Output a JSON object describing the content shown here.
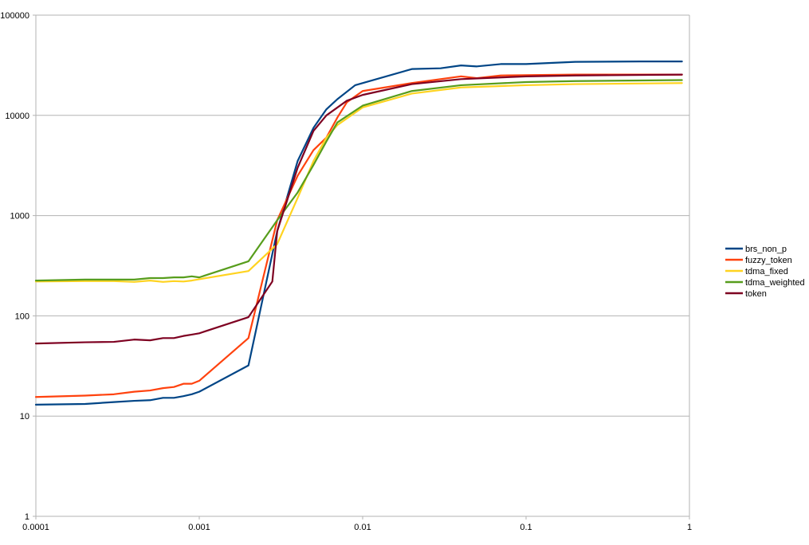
{
  "chart_data": {
    "type": "line",
    "title": "",
    "xlabel": "",
    "ylabel": "",
    "x_scale": "log",
    "y_scale": "log",
    "xlim": [
      0.0001,
      1
    ],
    "ylim": [
      1,
      100000
    ],
    "grid": {
      "x": false,
      "y": true
    },
    "legend_position": "right",
    "x_tick_labels": [
      "0.0001",
      "0.001",
      "0.01",
      "0.1",
      "1"
    ],
    "x_tick_values": [
      0.0001,
      0.001,
      0.01,
      0.1,
      1
    ],
    "y_tick_labels": [
      "1",
      "10",
      "100",
      "1000",
      "10000",
      "100000"
    ],
    "y_tick_values": [
      1,
      10,
      100,
      1000,
      10000,
      100000
    ],
    "series": [
      {
        "name": "brs_non_p",
        "color": "#004586",
        "points": [
          [
            0.0001,
            13
          ],
          [
            0.0002,
            13.2
          ],
          [
            0.0003,
            13.8
          ],
          [
            0.0004,
            14.2
          ],
          [
            0.0005,
            14.4
          ],
          [
            0.0006,
            15.2
          ],
          [
            0.0007,
            15.2
          ],
          [
            0.0008,
            15.8
          ],
          [
            0.0009,
            16.5
          ],
          [
            0.001,
            17.5
          ],
          [
            0.002,
            32
          ],
          [
            0.003,
            700
          ],
          [
            0.004,
            3500
          ],
          [
            0.005,
            7500
          ],
          [
            0.006,
            11500
          ],
          [
            0.007,
            14500
          ],
          [
            0.009,
            20000
          ],
          [
            0.02,
            29000
          ],
          [
            0.03,
            29500
          ],
          [
            0.04,
            31500
          ],
          [
            0.05,
            30800
          ],
          [
            0.07,
            32500
          ],
          [
            0.1,
            32500
          ],
          [
            0.2,
            34200
          ],
          [
            0.5,
            34500
          ],
          [
            0.9,
            34500
          ]
        ]
      },
      {
        "name": "fuzzy_token",
        "color": "#ff420e",
        "points": [
          [
            0.0001,
            15.5
          ],
          [
            0.0002,
            16
          ],
          [
            0.0003,
            16.5
          ],
          [
            0.0004,
            17.5
          ],
          [
            0.0005,
            18
          ],
          [
            0.0006,
            19
          ],
          [
            0.0007,
            19.5
          ],
          [
            0.0008,
            21
          ],
          [
            0.0009,
            21
          ],
          [
            0.001,
            22.5
          ],
          [
            0.002,
            60
          ],
          [
            0.003,
            900
          ],
          [
            0.004,
            2500
          ],
          [
            0.005,
            4500
          ],
          [
            0.006,
            6000
          ],
          [
            0.007,
            9500
          ],
          [
            0.008,
            13500
          ],
          [
            0.01,
            17500
          ],
          [
            0.02,
            21000
          ],
          [
            0.04,
            24500
          ],
          [
            0.05,
            23500
          ],
          [
            0.07,
            25000
          ],
          [
            0.2,
            25500
          ],
          [
            0.9,
            25500
          ]
        ]
      },
      {
        "name": "tdma_fixed",
        "color": "#ffd320",
        "points": [
          [
            0.0001,
            220
          ],
          [
            0.0002,
            222
          ],
          [
            0.0003,
            222
          ],
          [
            0.0004,
            218
          ],
          [
            0.0005,
            225
          ],
          [
            0.0006,
            218
          ],
          [
            0.0007,
            222
          ],
          [
            0.0008,
            220
          ],
          [
            0.0009,
            225
          ],
          [
            0.001,
            232
          ],
          [
            0.002,
            280
          ],
          [
            0.003,
            520
          ],
          [
            0.004,
            1500
          ],
          [
            0.005,
            3500
          ],
          [
            0.006,
            6000
          ],
          [
            0.007,
            8000
          ],
          [
            0.01,
            12000
          ],
          [
            0.02,
            16500
          ],
          [
            0.04,
            19000
          ],
          [
            0.1,
            20000
          ],
          [
            0.2,
            20500
          ],
          [
            0.9,
            21000
          ]
        ]
      },
      {
        "name": "tdma_weighted",
        "color": "#579d1c",
        "points": [
          [
            0.0001,
            225
          ],
          [
            0.0002,
            230
          ],
          [
            0.0003,
            230
          ],
          [
            0.0004,
            230
          ],
          [
            0.0005,
            238
          ],
          [
            0.0006,
            238
          ],
          [
            0.0007,
            242
          ],
          [
            0.0008,
            242
          ],
          [
            0.0009,
            248
          ],
          [
            0.001,
            242
          ],
          [
            0.002,
            350
          ],
          [
            0.003,
            900
          ],
          [
            0.004,
            1700
          ],
          [
            0.005,
            3200
          ],
          [
            0.006,
            5500
          ],
          [
            0.007,
            8500
          ],
          [
            0.01,
            12500
          ],
          [
            0.02,
            17500
          ],
          [
            0.04,
            20000
          ],
          [
            0.1,
            21500
          ],
          [
            0.2,
            22000
          ],
          [
            0.9,
            22500
          ]
        ]
      },
      {
        "name": "token",
        "color": "#7e0021",
        "points": [
          [
            0.0001,
            53
          ],
          [
            0.0002,
            54.5
          ],
          [
            0.0003,
            55
          ],
          [
            0.0004,
            58
          ],
          [
            0.0005,
            57
          ],
          [
            0.0006,
            60
          ],
          [
            0.0007,
            60
          ],
          [
            0.0008,
            63
          ],
          [
            0.0009,
            65
          ],
          [
            0.001,
            67
          ],
          [
            0.002,
            97
          ],
          [
            0.0028,
            220
          ],
          [
            0.003,
            700
          ],
          [
            0.004,
            3000
          ],
          [
            0.005,
            7000
          ],
          [
            0.006,
            10000
          ],
          [
            0.008,
            14000
          ],
          [
            0.01,
            16000
          ],
          [
            0.02,
            20500
          ],
          [
            0.04,
            23000
          ],
          [
            0.1,
            24500
          ],
          [
            0.2,
            25000
          ],
          [
            0.9,
            25500
          ]
        ]
      }
    ]
  }
}
